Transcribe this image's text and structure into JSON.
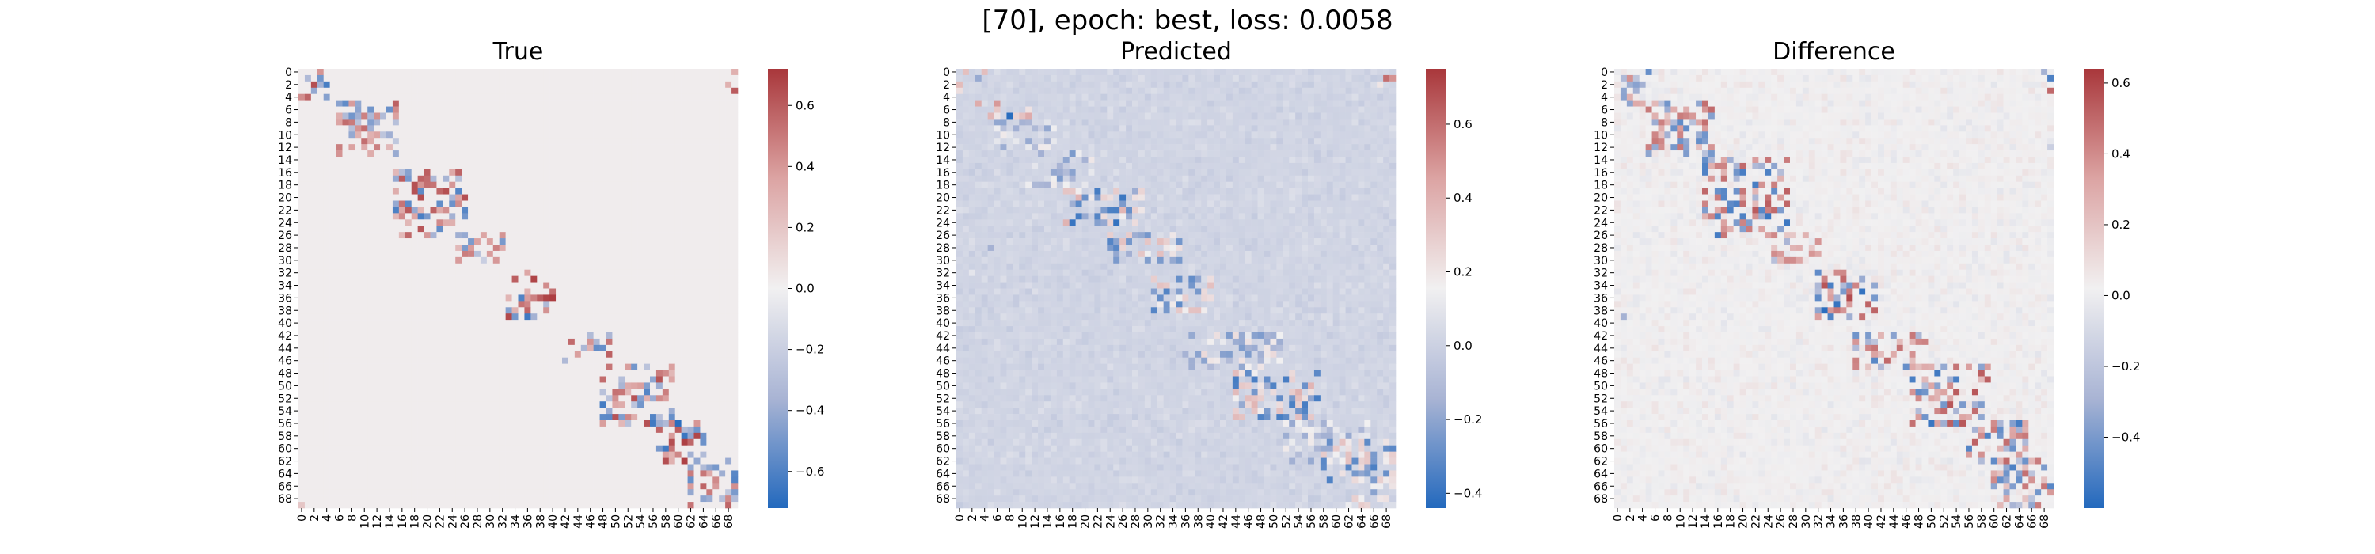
{
  "suptitle": "[70], epoch: best, loss: 0.0058",
  "colormap": {
    "name": "vlag",
    "stops": [
      "#2369bd",
      "#a9b4d4",
      "#f1f0f1",
      "#dca4a3",
      "#a9373b"
    ]
  },
  "chart_data": [
    {
      "type": "heatmap",
      "title": "True",
      "n": 70,
      "tick_labels": [
        "0",
        "2",
        "4",
        "6",
        "8",
        "10",
        "12",
        "14",
        "16",
        "18",
        "20",
        "22",
        "24",
        "26",
        "28",
        "30",
        "32",
        "34",
        "36",
        "38",
        "40",
        "42",
        "44",
        "46",
        "48",
        "50",
        "52",
        "54",
        "56",
        "58",
        "60",
        "62",
        "64",
        "66",
        "68"
      ],
      "colorbar": {
        "vmin": -0.72,
        "vmax": 0.72,
        "ticks": [
          -0.6,
          -0.4,
          -0.2,
          0.0,
          0.2,
          0.4,
          0.6
        ],
        "tick_labels": [
          "−0.6",
          "−0.4",
          "−0.2",
          "0.0",
          "0.2",
          "0.4",
          "0.6"
        ]
      },
      "background_value": 0.02,
      "noise": 0.0,
      "band_blocks": [
        {
          "r0": 0,
          "r1": 2,
          "c0": 1,
          "c1": 5,
          "amp": 0.6
        },
        {
          "r0": 2,
          "r1": 5,
          "c0": 0,
          "c1": 5,
          "amp": 0.7
        },
        {
          "r0": 5,
          "r1": 14,
          "c0": 6,
          "c1": 16,
          "amp": 0.6
        },
        {
          "r0": 16,
          "r1": 27,
          "c0": 15,
          "c1": 27,
          "amp": 0.65
        },
        {
          "r0": 26,
          "r1": 31,
          "c0": 25,
          "c1": 33,
          "amp": 0.5
        },
        {
          "r0": 32,
          "r1": 40,
          "c0": 33,
          "c1": 41,
          "amp": 0.7
        },
        {
          "r0": 42,
          "r1": 47,
          "c0": 42,
          "c1": 50,
          "amp": 0.6
        },
        {
          "r0": 47,
          "r1": 57,
          "c0": 48,
          "c1": 60,
          "amp": 0.65
        },
        {
          "r0": 56,
          "r1": 63,
          "c0": 57,
          "c1": 65,
          "amp": 0.7
        },
        {
          "r0": 62,
          "r1": 70,
          "c0": 62,
          "c1": 70,
          "amp": 0.6
        }
      ],
      "offdiag_cells": [
        [
          3,
          69,
          0.6
        ],
        [
          2,
          68,
          0.3
        ],
        [
          0,
          69,
          0.3
        ],
        [
          69,
          0,
          0.2
        ]
      ]
    },
    {
      "type": "heatmap",
      "title": "Predicted",
      "n": 70,
      "tick_labels": [
        "0",
        "2",
        "4",
        "6",
        "8",
        "10",
        "12",
        "14",
        "16",
        "18",
        "20",
        "22",
        "24",
        "26",
        "28",
        "30",
        "32",
        "34",
        "36",
        "38",
        "40",
        "42",
        "44",
        "46",
        "48",
        "50",
        "52",
        "54",
        "56",
        "58",
        "60",
        "62",
        "64",
        "66",
        "68"
      ],
      "colorbar": {
        "vmin": -0.44,
        "vmax": 0.75,
        "ticks": [
          -0.4,
          -0.2,
          0.0,
          0.2,
          0.4,
          0.6
        ],
        "tick_labels": [
          "−0.4",
          "−0.2",
          "0.0",
          "0.2",
          "0.4",
          "0.6"
        ]
      },
      "background_value": 0.02,
      "noise": 0.05,
      "band_blocks": [
        {
          "r0": 0,
          "r1": 4,
          "c0": 0,
          "c1": 5,
          "amp": 0.45
        },
        {
          "r0": 5,
          "r1": 8,
          "c0": 2,
          "c1": 12,
          "amp": 0.5
        },
        {
          "r0": 8,
          "r1": 13,
          "c0": 6,
          "c1": 16,
          "amp": -0.2
        },
        {
          "r0": 13,
          "r1": 19,
          "c0": 11,
          "c1": 22,
          "amp": -0.25
        },
        {
          "r0": 19,
          "r1": 25,
          "c0": 17,
          "c1": 30,
          "amp": 0.4
        },
        {
          "r0": 26,
          "r1": 31,
          "c0": 24,
          "c1": 36,
          "amp": 0.35
        },
        {
          "r0": 33,
          "r1": 39,
          "c0": 31,
          "c1": 41,
          "amp": -0.35
        },
        {
          "r0": 42,
          "r1": 48,
          "c0": 36,
          "c1": 52,
          "amp": -0.25
        },
        {
          "r0": 48,
          "r1": 56,
          "c0": 44,
          "c1": 58,
          "amp": 0.4
        },
        {
          "r0": 56,
          "r1": 63,
          "c0": 52,
          "c1": 66,
          "amp": -0.2
        },
        {
          "r0": 59,
          "r1": 66,
          "c0": 58,
          "c1": 70,
          "amp": 0.35
        },
        {
          "r0": 64,
          "r1": 70,
          "c0": 62,
          "c1": 70,
          "amp": 0.3
        }
      ],
      "offdiag_cells": [
        [
          1,
          68,
          0.6
        ],
        [
          1,
          69,
          0.5
        ],
        [
          2,
          67,
          0.2
        ],
        [
          28,
          5,
          -0.15
        ],
        [
          32,
          2,
          0.1
        ]
      ]
    },
    {
      "type": "heatmap",
      "title": "Difference",
      "n": 70,
      "tick_labels": [
        "0",
        "2",
        "4",
        "6",
        "8",
        "10",
        "12",
        "14",
        "16",
        "18",
        "20",
        "22",
        "24",
        "26",
        "28",
        "30",
        "32",
        "34",
        "36",
        "38",
        "40",
        "42",
        "44",
        "46",
        "48",
        "50",
        "52",
        "54",
        "56",
        "58",
        "60",
        "62",
        "64",
        "66",
        "68"
      ],
      "colorbar": {
        "vmin": -0.6,
        "vmax": 0.64,
        "ticks": [
          -0.4,
          -0.2,
          0.0,
          0.2,
          0.4,
          0.6
        ],
        "tick_labels": [
          "−0.4",
          "−0.2",
          "0.0",
          "0.2",
          "0.4",
          "0.6"
        ]
      },
      "background_value": 0.02,
      "noise": 0.06,
      "band_blocks": [
        {
          "r0": 0,
          "r1": 3,
          "c0": 1,
          "c1": 6,
          "amp": -0.5
        },
        {
          "r0": 2,
          "r1": 6,
          "c0": 0,
          "c1": 5,
          "amp": 0.4
        },
        {
          "r0": 5,
          "r1": 14,
          "c0": 5,
          "c1": 16,
          "amp": 0.5
        },
        {
          "r0": 14,
          "r1": 27,
          "c0": 14,
          "c1": 28,
          "amp": 0.55
        },
        {
          "r0": 26,
          "r1": 31,
          "c0": 25,
          "c1": 33,
          "amp": 0.4
        },
        {
          "r0": 32,
          "r1": 40,
          "c0": 32,
          "c1": 42,
          "amp": 0.6
        },
        {
          "r0": 42,
          "r1": 48,
          "c0": 38,
          "c1": 50,
          "amp": 0.5
        },
        {
          "r0": 47,
          "r1": 57,
          "c0": 47,
          "c1": 60,
          "amp": 0.55
        },
        {
          "r0": 56,
          "r1": 63,
          "c0": 56,
          "c1": 66,
          "amp": 0.55
        },
        {
          "r0": 62,
          "r1": 70,
          "c0": 60,
          "c1": 70,
          "amp": 0.5
        }
      ],
      "offdiag_cells": [
        [
          0,
          68,
          -0.3
        ],
        [
          3,
          69,
          0.5
        ],
        [
          1,
          69,
          -0.5
        ],
        [
          12,
          69,
          -0.15
        ],
        [
          39,
          1,
          -0.3
        ]
      ]
    }
  ]
}
